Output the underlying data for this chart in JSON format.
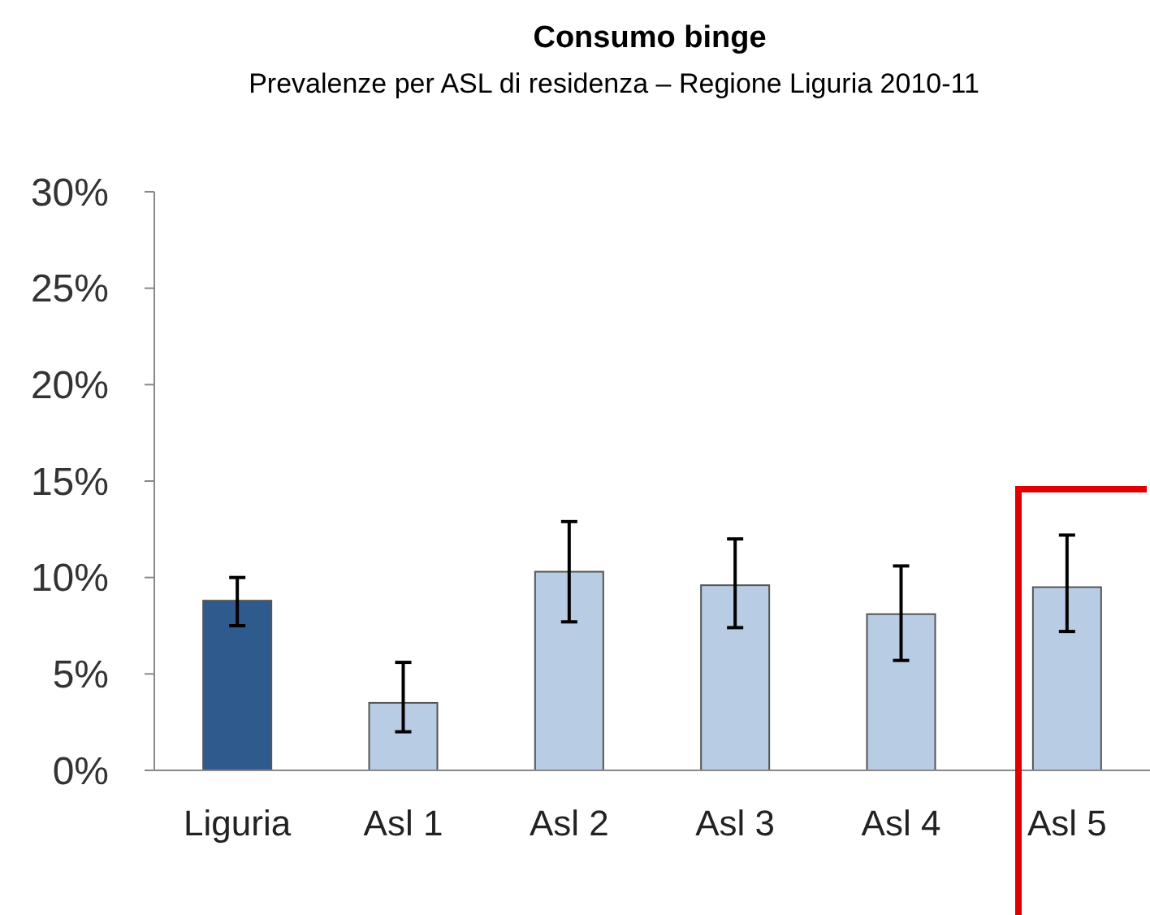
{
  "chart_data": {
    "type": "bar",
    "title": "Consumo binge",
    "subtitle": "Prevalenze per ASL di residenza – Regione Liguria 2010-11",
    "categories": [
      "Liguria",
      "Asl 1",
      "Asl 2",
      "Asl 3",
      "Asl 4",
      "Asl 5"
    ],
    "values": [
      8.8,
      3.5,
      10.3,
      9.6,
      8.1,
      9.5
    ],
    "colors": [
      "#2f5a8e",
      "#b8cce4",
      "#b8cce4",
      "#b8cce4",
      "#b8cce4",
      "#b8cce4"
    ],
    "errors": [
      [
        7.5,
        10.0
      ],
      [
        2.0,
        5.6
      ],
      [
        7.7,
        12.9
      ],
      [
        7.4,
        12.0
      ],
      [
        5.7,
        10.6
      ],
      [
        7.2,
        12.2
      ]
    ],
    "ylim": [
      0,
      30
    ],
    "yticks": [
      {
        "value": 0,
        "label": "0%"
      },
      {
        "value": 5,
        "label": "5%"
      },
      {
        "value": 10,
        "label": "10%"
      },
      {
        "value": 15,
        "label": "15%"
      },
      {
        "value": 20,
        "label": "20%"
      },
      {
        "value": 25,
        "label": "25%"
      },
      {
        "value": 30,
        "label": "30%"
      }
    ],
    "grid": false
  }
}
